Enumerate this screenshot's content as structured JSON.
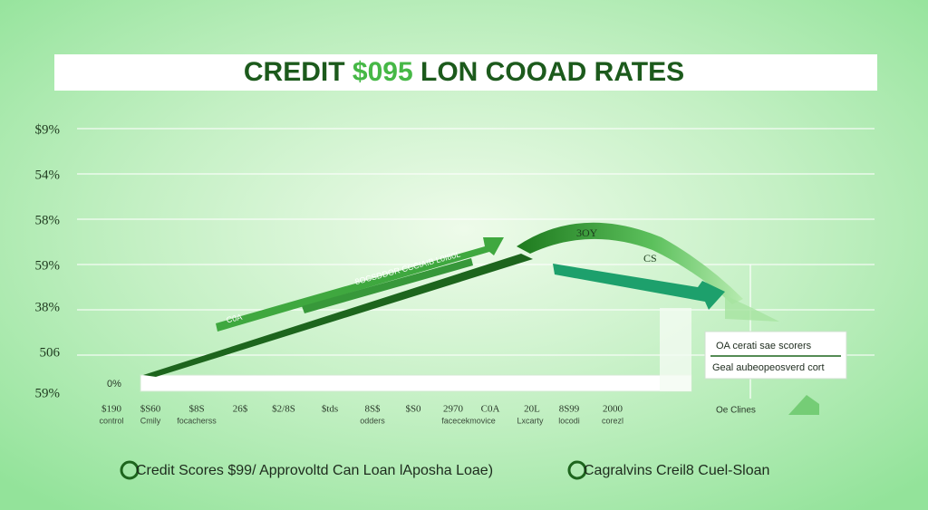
{
  "header": {
    "title_parts": [
      "CREDIT",
      "$095",
      "LON COOAD RATES"
    ]
  },
  "y_labels": [
    "$9%",
    "54%",
    "58%",
    "59%",
    "38%",
    "506",
    "59%"
  ],
  "x_labels": [
    {
      "top": "$190",
      "bottom": "control"
    },
    {
      "top": "$S60",
      "bottom": "Cmily"
    },
    {
      "top": "$8S",
      "bottom": "focacherss"
    },
    {
      "top": "26$"
    },
    {
      "top": "$2/8S"
    },
    {
      "top": "$tds"
    },
    {
      "top": "8S$",
      "bottom": "odders"
    },
    {
      "top": "$S0"
    },
    {
      "top": "2970",
      "bottom": "facecekmovice"
    },
    {
      "top": "C0A"
    },
    {
      "top": "20L",
      "bottom": "Lxcarty"
    },
    {
      "top": "8S99",
      "bottom": "locodi"
    },
    {
      "top": "2000",
      "bottom": "corezl"
    }
  ],
  "annotations": {
    "zero": "0%",
    "arrow_text": "8OCSDDOR CCCIAIB L0I80L",
    "arrow_text_2": "C0A",
    "curve_top": "3OY",
    "curve_side": "CS",
    "side": "Oe Clines"
  },
  "callout": {
    "lines": [
      "OA cerati sae scorers",
      "Geal aubeopeosverd cort"
    ]
  },
  "legend": [
    "Credit Scores $99/ Approvoltd Can Loan lAposha Loae)",
    "Cagralvins Creil8 Cuel-Sloan"
  ]
}
